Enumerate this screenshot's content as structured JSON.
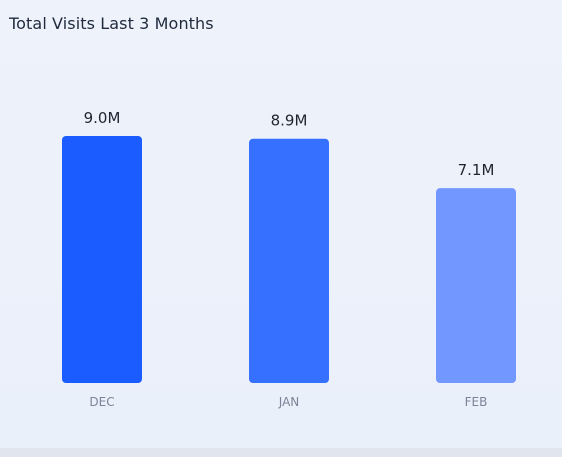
{
  "title": "Total Visits Last 3 Months",
  "chart_data": {
    "type": "bar",
    "categories": [
      "DEC",
      "JAN",
      "FEB"
    ],
    "values": [
      9.0,
      8.9,
      7.1
    ],
    "data_labels": [
      "9.0M",
      "8.9M",
      "7.1M"
    ],
    "unit": "M",
    "colors": [
      "#1a5cff",
      "#3670ff",
      "#7298ff"
    ],
    "title": "Total Visits Last 3 Months",
    "xlabel": "",
    "ylabel": "",
    "ylim": [
      0,
      9.0
    ],
    "grid": false,
    "legend": "none"
  }
}
